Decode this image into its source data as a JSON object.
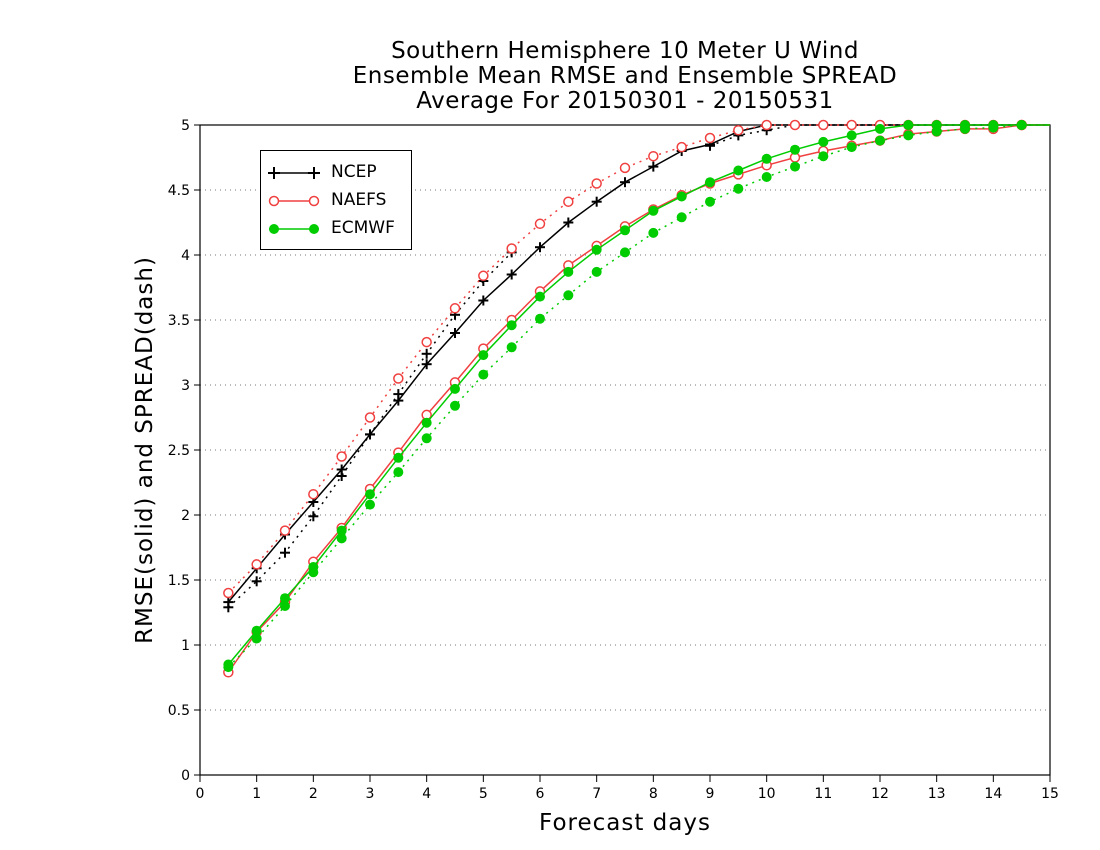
{
  "chart_data": {
    "type": "line",
    "title": [
      "Southern Hemisphere 10 Meter U Wind",
      "Ensemble Mean RMSE and Ensemble SPREAD",
      "Average For 20150301 - 20150531"
    ],
    "xlabel": "Forecast days",
    "ylabel": "RMSE(solid) and SPREAD(dash)",
    "xlim": [
      0,
      15
    ],
    "ylim": [
      0,
      5
    ],
    "xticks": [
      "0",
      "1",
      "2",
      "3",
      "4",
      "5",
      "6",
      "7",
      "8",
      "9",
      "10",
      "11",
      "12",
      "13",
      "14",
      "15"
    ],
    "yticks": [
      "0",
      "0.5",
      "1",
      "1.5",
      "2",
      "2.5",
      "3",
      "3.5",
      "4",
      "4.5",
      "5"
    ],
    "grid": "horizontal dotted",
    "legend_position": "top-left",
    "x": [
      0.5,
      1,
      1.5,
      2,
      2.5,
      3,
      3.5,
      4,
      4.5,
      5,
      5.5,
      6,
      6.5,
      7,
      7.5,
      8,
      8.5,
      9,
      9.5,
      10,
      10.5,
      11,
      11.5,
      12,
      12.5,
      13,
      13.5,
      14,
      14.5,
      15
    ],
    "series": [
      {
        "name": "NCEP",
        "color": "#000000",
        "marker": "plus",
        "rmse": [
          1.33,
          1.59,
          1.85,
          2.1,
          2.35,
          2.62,
          2.88,
          3.16,
          3.4,
          3.65,
          3.85,
          4.06,
          4.25,
          4.41,
          4.56,
          4.68,
          4.8,
          4.85,
          4.95,
          5.0,
          5.02,
          5.03,
          5.03,
          5.03,
          5.03,
          5.03,
          5.03,
          5.03,
          5.03,
          5.03
        ],
        "spread": [
          1.29,
          1.49,
          1.71,
          1.99,
          2.3,
          2.62,
          2.93,
          3.24,
          3.54,
          3.8,
          4.02,
          null,
          null,
          null,
          null,
          null,
          null,
          4.84,
          4.92,
          4.96,
          5.01,
          5.03,
          5.03,
          5.03,
          5.03,
          5.03,
          5.03,
          5.03,
          5.03,
          5.03
        ]
      },
      {
        "name": "NAEFS",
        "color": "#f04040",
        "marker": "open-circle",
        "rmse": [
          0.79,
          1.1,
          1.33,
          1.64,
          1.9,
          2.2,
          2.48,
          2.77,
          3.02,
          3.28,
          3.5,
          3.72,
          3.92,
          4.07,
          4.22,
          4.35,
          4.46,
          4.55,
          4.62,
          4.69,
          4.75,
          4.8,
          4.84,
          4.88,
          4.93,
          4.95,
          4.97,
          4.97,
          5.02,
          5.02
        ],
        "spread": [
          1.4,
          1.62,
          1.88,
          2.16,
          2.45,
          2.75,
          3.05,
          3.33,
          3.59,
          3.84,
          4.05,
          4.24,
          4.41,
          4.55,
          4.67,
          4.76,
          4.83,
          4.9,
          4.96,
          5.0,
          5.03,
          5.03,
          5.03,
          5.03,
          5.03,
          5.03,
          5.03,
          5.03,
          5.03,
          5.03
        ]
      },
      {
        "name": "ECMWF",
        "color": "#00cc00",
        "marker": "filled-circle",
        "rmse": [
          0.85,
          1.11,
          1.36,
          1.6,
          1.88,
          2.16,
          2.44,
          2.71,
          2.97,
          3.23,
          3.46,
          3.68,
          3.87,
          4.04,
          4.19,
          4.34,
          4.45,
          4.56,
          4.65,
          4.74,
          4.81,
          4.87,
          4.92,
          4.97,
          5.0,
          5.02,
          5.03,
          5.03,
          5.03,
          5.03
        ],
        "spread": [
          0.83,
          1.05,
          1.3,
          1.56,
          1.82,
          2.08,
          2.33,
          2.59,
          2.84,
          3.08,
          3.29,
          3.51,
          3.69,
          3.87,
          4.02,
          4.17,
          4.29,
          4.41,
          4.51,
          4.6,
          4.68,
          4.76,
          4.83,
          4.88,
          4.92,
          4.95,
          4.97,
          4.98,
          5.02,
          5.02
        ]
      }
    ]
  }
}
